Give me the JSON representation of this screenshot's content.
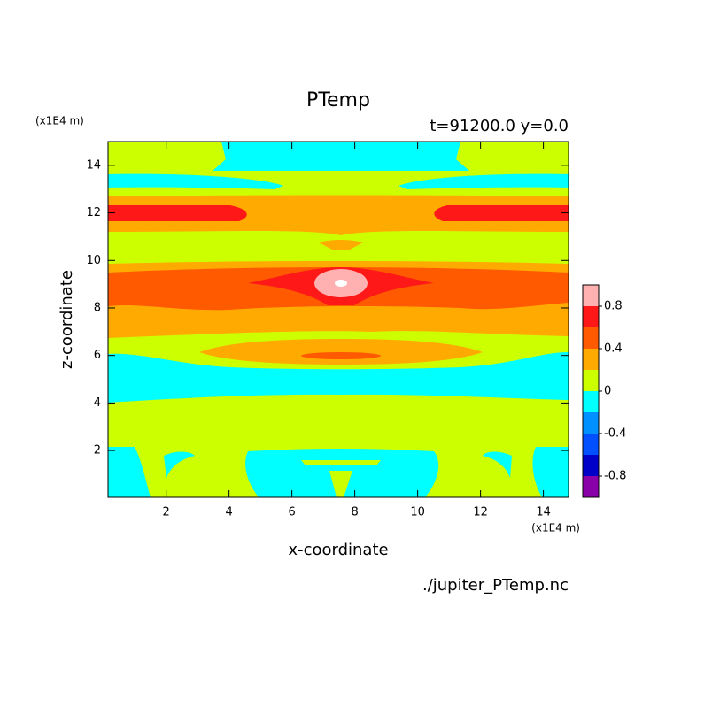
{
  "chart_data": {
    "type": "contour",
    "title": "PTemp",
    "subtitle": "t=91200.0 y=0.0",
    "x_label": "x-coordinate",
    "y_label": "z-coordinate",
    "x_unit": "(x1E4 m)",
    "y_unit": "(x1E4 m)",
    "source": "./jupiter_PTemp.nc",
    "xlim": [
      0.15,
      14.8
    ],
    "ylim": [
      0.03,
      15
    ],
    "xticks": [
      2,
      4,
      6,
      8,
      10,
      12,
      14
    ],
    "yticks": [
      2,
      4,
      6,
      8,
      10,
      12,
      14
    ],
    "levels": [
      -1,
      -0.8,
      -0.6,
      -0.4,
      -0.2,
      0,
      0.2,
      0.4,
      0.6,
      0.8,
      1
    ],
    "colors": [
      "#8a00a8",
      "#0000c8",
      "#0050ff",
      "#0090ff",
      "#00ffff",
      "#ccff00",
      "#ffaa00",
      "#ff5a00",
      "#ff1818",
      "#ffb0b0"
    ],
    "colorbar_ticks": [
      -0.8,
      -0.4,
      0,
      0.4,
      0.8
    ]
  }
}
